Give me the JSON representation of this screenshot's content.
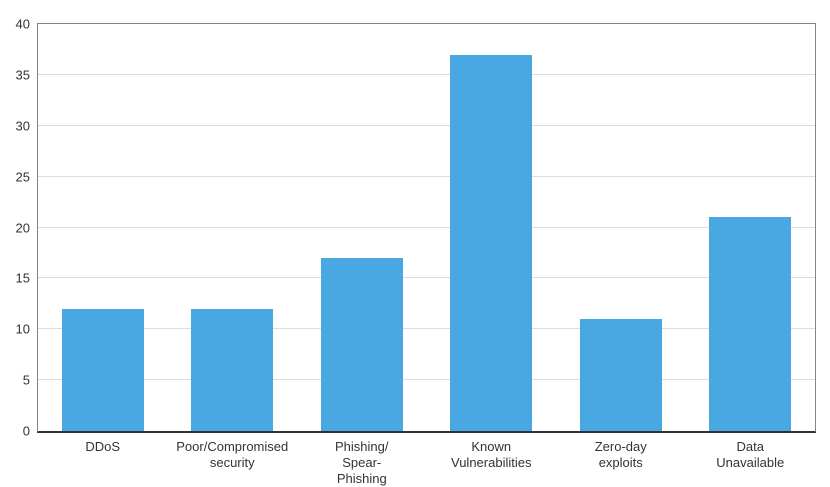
{
  "chart_data": {
    "type": "bar",
    "title": "",
    "xlabel": "",
    "ylabel": "",
    "categories": [
      "DDoS",
      "Poor/Compromised security",
      "Phishing/Spear-Phishing",
      "Known Vulnerabilities",
      "Zero-day exploits",
      "Data Unavailable"
    ],
    "category_display_lines": [
      [
        "DDoS"
      ],
      [
        "Poor/Compromised",
        "security"
      ],
      [
        "Phishing/",
        "Spear-",
        "Phishing"
      ],
      [
        "Known",
        "Vulnerabilities"
      ],
      [
        "Zero-day",
        "exploits"
      ],
      [
        "Data",
        "Unavailable"
      ]
    ],
    "values": [
      12,
      12,
      17,
      37,
      11,
      21
    ],
    "ylim": [
      0,
      40
    ],
    "yticks": [
      0,
      5,
      10,
      15,
      20,
      25,
      30,
      35,
      40
    ],
    "grid": true,
    "legend": false
  },
  "colors": {
    "bar": "#49A7E2",
    "gridline": "#dcdcdc",
    "plot_border": "#848484",
    "bottom_axis": "#333333",
    "text": "#333333",
    "background": "#ffffff"
  }
}
